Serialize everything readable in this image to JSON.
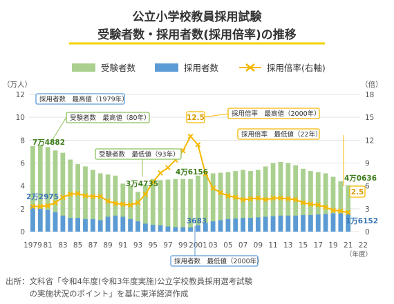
{
  "chart_data": {
    "type": "bar",
    "title": "公立小学校教員採用試験",
    "subtitle": "受験者数・採用者数(採用倍率)の推移",
    "years": [
      1979,
      1980,
      1981,
      1982,
      1983,
      1984,
      1985,
      1986,
      1987,
      1988,
      1989,
      1990,
      1991,
      1992,
      1993,
      1994,
      1995,
      1996,
      1997,
      1998,
      1999,
      2000,
      2001,
      2002,
      2003,
      2004,
      2005,
      2006,
      2007,
      2008,
      2009,
      2010,
      2011,
      2012,
      2013,
      2014,
      2015,
      2016,
      2017,
      2018,
      2019,
      2020,
      2021
    ],
    "x_tick_labels": [
      "1979",
      "81",
      "83",
      "85",
      "87",
      "89",
      "91",
      "93",
      "95",
      "97",
      "99",
      "2001",
      "03",
      "05",
      "07",
      "09",
      "11",
      "13",
      "15",
      "17",
      "19",
      "21",
      "22"
    ],
    "x_unit": "（年度）",
    "y_left_label": "（万人）",
    "y_right_label": "（倍）",
    "y_left_ticks": [
      "0",
      "2",
      "4",
      "6",
      "8",
      "10",
      "12"
    ],
    "y_right_ticks": [
      "0",
      "3",
      "6",
      "9",
      "12",
      "15",
      "18"
    ],
    "y_left_lim": [
      0,
      12
    ],
    "y_right_lim": [
      0,
      18
    ],
    "series": [
      {
        "name": "受験者数",
        "axis": "left",
        "unit": "万人",
        "color": "#a9d08e",
        "values": [
          7.4882,
          7.6,
          7.4,
          7.1,
          6.9,
          6.3,
          5.9,
          5.7,
          5.4,
          5.1,
          5.0,
          4.9,
          4.2,
          4.0,
          3.4735,
          4.1,
          4.6,
          4.5,
          4.55,
          4.6,
          4.6156,
          4.6,
          4.9,
          5.0,
          5.1,
          5.15,
          5.2,
          5.3,
          5.4,
          5.3,
          5.4,
          5.7,
          6.0,
          6.1,
          6.0,
          5.8,
          5.5,
          5.3,
          5.2,
          5.1,
          4.8,
          4.4,
          4.0636
        ]
      },
      {
        "name": "採用者数",
        "axis": "left",
        "unit": "万人",
        "color": "#5b9bd5",
        "values": [
          2.2975,
          2.0,
          1.9,
          1.7,
          1.4,
          1.2,
          1.2,
          1.1,
          1.1,
          1.0,
          1.3,
          1.4,
          1.3,
          1.1,
          0.9,
          0.7,
          0.6,
          0.55,
          0.45,
          0.4,
          0.38,
          0.3683,
          0.55,
          0.75,
          0.9,
          1.0,
          1.1,
          1.15,
          1.2,
          1.2,
          1.25,
          1.3,
          1.35,
          1.4,
          1.4,
          1.4,
          1.45,
          1.45,
          1.5,
          1.55,
          1.6,
          1.6,
          1.6152
        ]
      },
      {
        "name": "採用倍率(右軸)",
        "axis": "right",
        "unit": "倍",
        "color": "#f5b800",
        "values": [
          3.3,
          3.3,
          3.4,
          3.8,
          4.5,
          4.9,
          5.0,
          4.7,
          4.6,
          4.6,
          4.0,
          3.7,
          3.6,
          3.5,
          3.8,
          4.9,
          6.5,
          7.7,
          8.4,
          9.4,
          10.6,
          12.5,
          11.4,
          7.6,
          5.7,
          5.1,
          4.7,
          4.5,
          4.2,
          4.3,
          4.4,
          4.2,
          4.4,
          4.4,
          4.3,
          4.2,
          3.8,
          3.6,
          3.5,
          3.2,
          2.8,
          2.7,
          2.5
        ]
      }
    ],
    "value_labels": {
      "applicants_1979": "7万4882",
      "hires_1979": "2万2975",
      "applicants_1993": "3万4735",
      "applicants_2000": "4万6156",
      "hires_2000": "3683",
      "applicants_2021": "4万0636",
      "hires_2021": "1万6152",
      "ratio_2000": "12.5",
      "ratio_2021": "2.5"
    },
    "annotations": {
      "hires_max": "採用者数　最高値（1979年）",
      "applicants_max": "受験者数　最高値（80年）",
      "applicants_min": "受験者数　最低値（93年）",
      "ratio_max": "採用倍率　最高値（2000年）",
      "ratio_min": "採用倍率　最低値（22年）",
      "hires_min": "採用者数　最低値（2000年）"
    },
    "colors": {
      "applicants": "#a9d08e",
      "hires": "#5b9bd5",
      "ratio": "#f5b800",
      "grid": "#e3e3e3"
    }
  },
  "source_lines": [
    "出所：文科省「令和4年度(令和3年度実施)公立学校教員採用選考試験",
    "　　　の実施状況のポイント」を基に東洋経済作成"
  ]
}
